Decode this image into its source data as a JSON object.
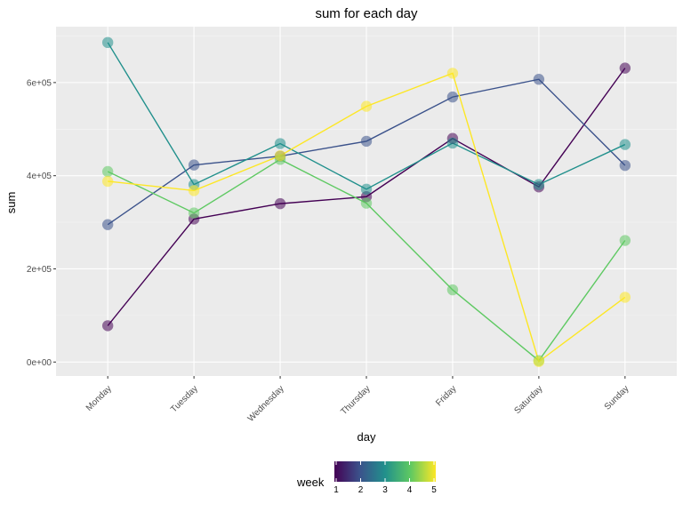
{
  "chart_data": {
    "type": "line",
    "title": "sum for each day",
    "xlabel": "day",
    "ylabel": "sum",
    "categories": [
      "Monday",
      "Tuesday",
      "Wednesday",
      "Thursday",
      "Friday",
      "Saturday",
      "Sunday"
    ],
    "ylim": [
      -30000,
      720000
    ],
    "yticks": [
      0,
      200000,
      400000,
      600000
    ],
    "ytick_labels": [
      "0e+00",
      "2e+05",
      "4e+05",
      "6e+05"
    ],
    "series": [
      {
        "name": "1",
        "color": "#440154",
        "values": [
          78000,
          307000,
          340000,
          355000,
          480000,
          376000,
          631000
        ]
      },
      {
        "name": "2",
        "color": "#3b528b",
        "values": [
          295000,
          423000,
          442000,
          474000,
          569000,
          607000,
          422000
        ]
      },
      {
        "name": "3",
        "color": "#21908c",
        "values": [
          686000,
          381000,
          469000,
          371000,
          470000,
          381000,
          467000
        ]
      },
      {
        "name": "4",
        "color": "#5ec962",
        "values": [
          409000,
          320000,
          435000,
          341000,
          155000,
          3000,
          261000
        ]
      },
      {
        "name": "5",
        "color": "#fde725",
        "values": [
          388000,
          368000,
          443000,
          549000,
          620000,
          1000,
          139000
        ]
      }
    ],
    "legend": {
      "title": "week",
      "position": "bottom",
      "ticks": [
        "1",
        "2",
        "3",
        "4",
        "5"
      ],
      "gradient": [
        "#440154",
        "#3b528b",
        "#21908c",
        "#5ec962",
        "#fde725"
      ]
    },
    "grid": true
  }
}
